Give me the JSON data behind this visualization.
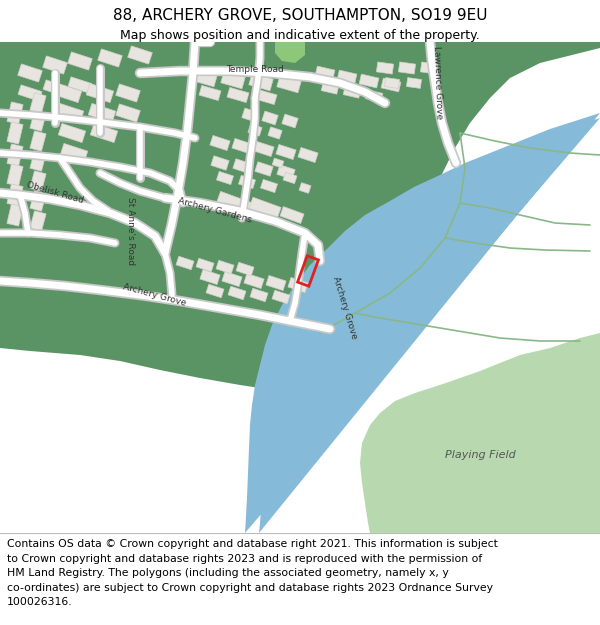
{
  "title": "88, ARCHERY GROVE, SOUTHAMPTON, SO19 9EU",
  "subtitle": "Map shows position and indicative extent of the property.",
  "footer_text": "Contains OS data © Crown copyright and database right 2021. This information is subject\nto Crown copyright and database rights 2023 and is reproduced with the permission of\nHM Land Registry. The polygons (including the associated geometry, namely x, y\nco-ordinates) are subject to Crown copyright and database rights 2023 Ordnance Survey\n100026316.",
  "map_bg": "#f7f7f7",
  "urban_bg": "#f7f7f7",
  "dark_green": "#5a9464",
  "light_green": "#b8d9b0",
  "road_white": "#ffffff",
  "road_gray": "#d8d8d8",
  "building_fill": "#e8e5e0",
  "building_edge": "#d0cdc8",
  "water_blue": "#85bbd8",
  "path_light": "#d8e8d0",
  "plot_red": "#dd2222",
  "title_fs": 11,
  "subtitle_fs": 9,
  "footer_fs": 7.8
}
